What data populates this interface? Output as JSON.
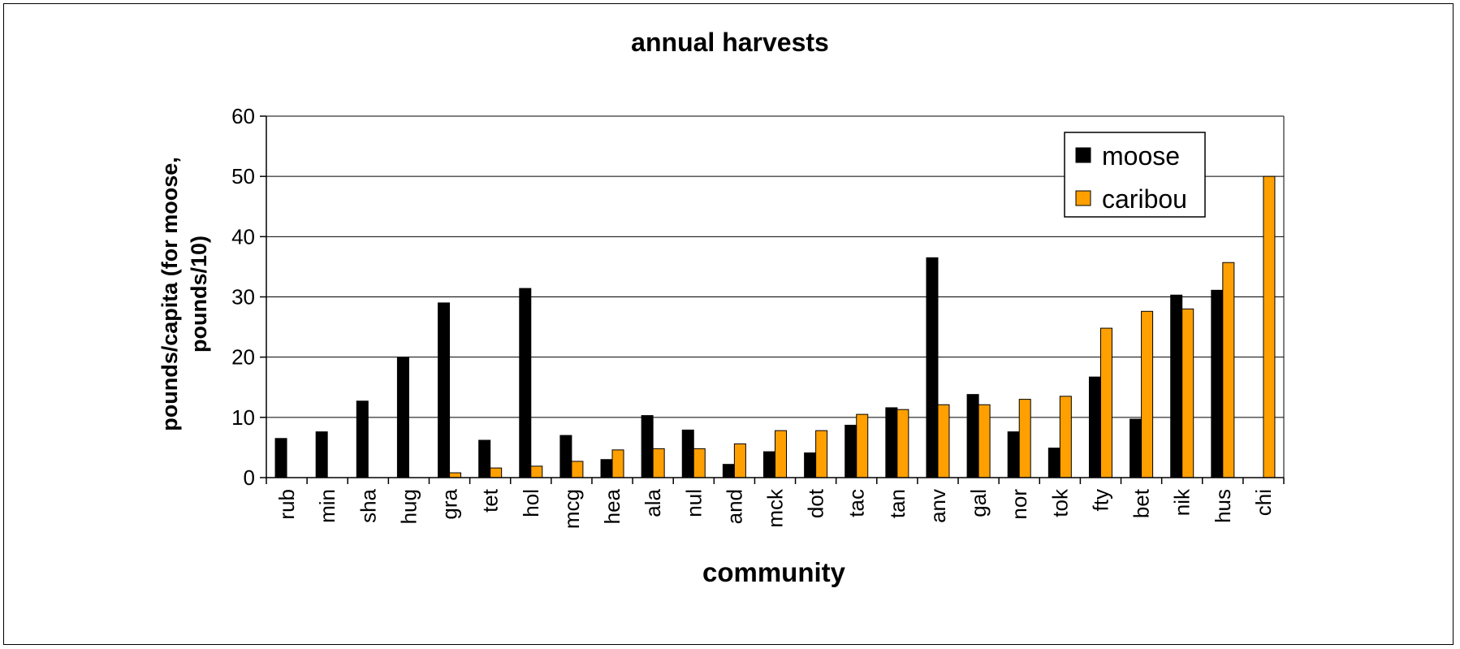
{
  "chart_data": {
    "type": "bar",
    "title": "annual harvests",
    "xlabel": "community",
    "ylabel_lines": [
      "pounds/capita (for moose,",
      "pounds/10)"
    ],
    "ylim": [
      0,
      60
    ],
    "yticks": [
      0,
      10,
      20,
      30,
      40,
      50,
      60
    ],
    "grid": true,
    "legend_position": "top-right",
    "categories": [
      "rub",
      "min",
      "sha",
      "hug",
      "gra",
      "tet",
      "hol",
      "mcg",
      "hea",
      "ala",
      "nul",
      "and",
      "mck",
      "dot",
      "tac",
      "tan",
      "anv",
      "gal",
      "nor",
      "tok",
      "fty",
      "bet",
      "nik",
      "hus",
      "chi"
    ],
    "series": [
      {
        "name": "moose",
        "color": "#000000",
        "values": [
          6.5,
          7.6,
          12.7,
          20.0,
          29.0,
          6.2,
          31.4,
          7.0,
          3.0,
          10.3,
          7.9,
          2.2,
          4.3,
          4.1,
          8.7,
          11.6,
          36.5,
          13.8,
          7.6,
          4.9,
          16.7,
          9.7,
          30.3,
          31.1,
          0
        ]
      },
      {
        "name": "caribou",
        "color": "#FFA000",
        "values": [
          0,
          0,
          0,
          0,
          0.8,
          1.6,
          1.9,
          2.7,
          4.6,
          4.8,
          4.8,
          5.6,
          7.8,
          7.8,
          10.5,
          11.3,
          12.1,
          12.1,
          13.0,
          13.5,
          24.8,
          27.6,
          28.0,
          35.7,
          50.0
        ]
      }
    ]
  }
}
